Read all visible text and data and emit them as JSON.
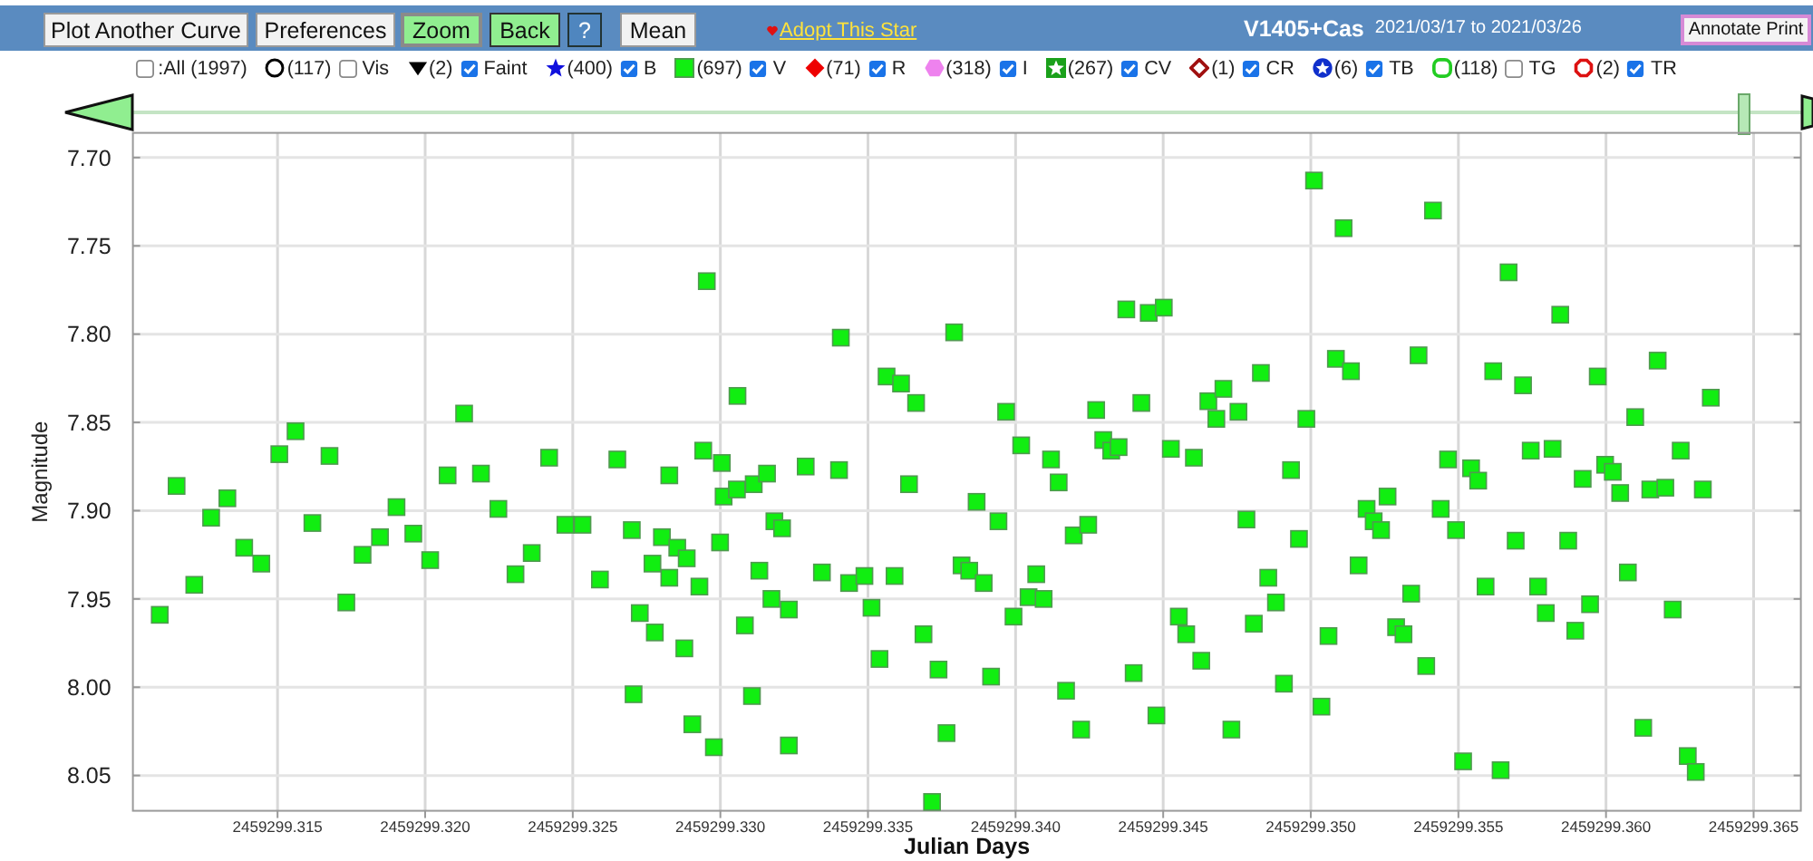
{
  "chart_data": {
    "type": "scatter",
    "title": "V1405+Cas",
    "subtitle": "2021/03/17 to 2021/03/26",
    "xlabel": "Julian Days",
    "ylabel": "Magnitude",
    "annotations": [
      "Plot Another Curve",
      "Preferences",
      "Zoom",
      "Back",
      "?",
      "Mean",
      "Adopt This Star",
      "Annotate Print",
      ":All (1997)",
      "(117)",
      "Vis",
      "(2)",
      "Faint",
      "(400)",
      "B",
      "(697)",
      "(71)",
      "R",
      "(318)",
      "I",
      "(267)",
      "CV",
      "(1)",
      "CR",
      "(6)",
      "TB",
      "(118)",
      "TG",
      "(2)",
      "TR"
    ],
    "series": [
      {
        "name": "V",
        "color": "#11ee11",
        "x": [
          2459299.31101,
          2459299.31158,
          2459299.31218,
          2459299.31275,
          2459299.3133,
          2459299.31387,
          2459299.31445,
          2459299.31506,
          2459299.31561,
          2459299.31618,
          2459299.31676,
          2459299.31733,
          2459299.31788,
          2459299.31847,
          2459299.31903,
          2459299.3196,
          2459299.32017,
          2459299.32076,
          2459299.32132,
          2459299.32189,
          2459299.32248,
          2459299.32306,
          2459299.32361,
          2459299.3242,
          2459299.32475,
          2459299.32533,
          2459299.32592,
          2459299.32651,
          2459299.327,
          2459299.32727,
          2459299.32706,
          2459299.3277,
          2459299.32778,
          2459299.32802,
          2459299.32827,
          2459299.32827,
          2459299.32854,
          2459299.32878,
          2459299.32886,
          2459299.32905,
          2459299.32929,
          2459299.32942,
          2459299.32954,
          2459299.32978,
          2459299.32999,
          2459299.33005,
          2459299.33011,
          2459299.33058,
          2459299.33056,
          2459299.33083,
          2459299.33107,
          2459299.33113,
          2459299.33132,
          2459299.33158,
          2459299.33173,
          2459299.33183,
          2459299.33209,
          2459299.33232,
          2459299.33232,
          2459299.33289,
          2459299.33344,
          2459299.33402,
          2459299.33408,
          2459299.33436,
          2459299.33488,
          2459299.33512,
          2459299.33539,
          2459299.33563,
          2459299.3359,
          2459299.33612,
          2459299.33639,
          2459299.33663,
          2459299.33688,
          2459299.33717,
          2459299.33739,
          2459299.33766,
          2459299.33792,
          2459299.33817,
          2459299.33843,
          2459299.33868,
          2459299.33892,
          2459299.33917,
          2459299.33942,
          2459299.33968,
          2459299.33993,
          2459299.34019,
          2459299.34044,
          2459299.3407,
          2459299.34095,
          2459299.3412,
          2459299.34146,
          2459299.34171,
          2459299.34197,
          2459299.34222,
          2459299.34246,
          2459299.34273,
          2459299.34297,
          2459299.34324,
          2459299.34349,
          2459299.34375,
          2459299.344,
          2459299.34426,
          2459299.34451,
          2459299.34477,
          2459299.34502,
          2459299.34526,
          2459299.34553,
          2459299.34578,
          2459299.34604,
          2459299.34629,
          2459299.34653,
          2459299.3468,
          2459299.34704,
          2459299.34731,
          2459299.34755,
          2459299.34782,
          2459299.34807,
          2459299.34831,
          2459299.34856,
          2459299.34882,
          2459299.34909,
          2459299.34933,
          2459299.3496,
          2459299.34985,
          2459299.35011,
          2459299.35036,
          2459299.3506,
          2459299.35085,
          2459299.35111,
          2459299.35136,
          2459299.35162,
          2459299.35189,
          2459299.35213,
          2459299.35238,
          2459299.3526,
          2459299.35289,
          2459299.35314,
          2459299.3534,
          2459299.35365,
          2459299.35391,
          2459299.35414,
          2459299.3544,
          2459299.35465,
          2459299.35492,
          2459299.35516,
          2459299.35543,
          2459299.35567,
          2459299.35592,
          2459299.35618,
          2459299.35643,
          2459299.3567,
          2459299.35694,
          2459299.35719,
          2459299.35745,
          2459299.3577,
          2459299.35796,
          2459299.35819,
          2459299.35845,
          2459299.35872,
          2459299.35896,
          2459299.35921,
          2459299.35946,
          2459299.35972,
          2459299.35997,
          2459299.36023,
          2459299.36048,
          2459299.36074,
          2459299.36099,
          2459299.36126,
          2459299.3615,
          2459299.36175,
          2459299.36201,
          2459299.36226,
          2459299.36253,
          2459299.36277,
          2459299.36304,
          2459299.36328,
          2459299.36355
        ],
        "values": [
          7.959,
          7.886,
          7.942,
          7.904,
          7.893,
          7.921,
          7.93,
          7.868,
          7.855,
          7.907,
          7.869,
          7.952,
          7.925,
          7.915,
          7.898,
          7.913,
          7.928,
          7.88,
          7.845,
          7.879,
          7.899,
          7.936,
          7.924,
          7.87,
          7.908,
          7.908,
          7.939,
          7.871,
          7.911,
          7.958,
          8.004,
          7.93,
          7.969,
          7.915,
          7.88,
          7.938,
          7.921,
          7.978,
          7.927,
          8.021,
          7.943,
          7.866,
          7.77,
          8.034,
          7.918,
          7.873,
          7.892,
          7.835,
          7.888,
          7.965,
          8.005,
          7.885,
          7.934,
          7.879,
          7.95,
          7.906,
          7.91,
          7.956,
          8.033,
          7.875,
          7.935,
          7.877,
          7.802,
          7.941,
          7.937,
          7.955,
          7.984,
          7.824,
          7.937,
          7.828,
          7.885,
          7.839,
          7.97,
          8.065,
          7.99,
          8.026,
          7.799,
          7.931,
          7.934,
          7.895,
          7.941,
          7.994,
          7.906,
          7.844,
          7.96,
          7.863,
          7.949,
          7.936,
          7.95,
          7.871,
          7.884,
          8.002,
          7.914,
          8.024,
          7.908,
          7.843,
          7.86,
          7.866,
          7.864,
          7.786,
          7.992,
          7.839,
          7.788,
          8.016,
          7.785,
          7.865,
          7.96,
          7.97,
          7.87,
          7.985,
          7.838,
          7.848,
          7.831,
          8.024,
          7.844,
          7.905,
          7.964,
          7.822,
          7.938,
          7.952,
          7.998,
          7.877,
          7.916,
          7.848,
          7.713,
          8.011,
          7.971,
          7.814,
          7.74,
          7.821,
          7.931,
          7.899,
          7.906,
          7.911,
          7.892,
          7.966,
          7.97,
          7.947,
          7.812,
          7.988,
          7.73,
          7.899,
          7.871,
          7.911,
          8.042,
          7.876,
          7.883,
          7.943,
          7.821,
          8.047,
          7.765,
          7.917,
          7.829,
          7.866,
          7.943,
          7.958,
          7.865,
          7.789,
          7.917,
          7.968,
          7.882,
          7.953,
          7.824,
          7.874,
          7.878,
          7.89,
          7.935,
          7.847,
          8.023,
          7.888,
          7.815,
          7.887,
          7.956,
          7.866,
          8.039,
          8.048,
          7.888,
          7.836
        ]
      }
    ],
    "xlim": [
      2459299.3101,
      2459299.3666
    ],
    "xticks": [
      2459299.315,
      {
        "value": 2459299.32,
        "label": "2459299.320"
      },
      2459299.325,
      {
        "value": 2459299.33,
        "label": "2459299.330"
      },
      2459299.335,
      {
        "value": 2459299.34,
        "label": "2459299.340"
      },
      2459299.345,
      {
        "value": 2459299.35,
        "label": "2459299.350"
      },
      2459299.355,
      {
        "value": 2459299.36,
        "label": "2459299.360"
      },
      2459299.365
    ],
    "ylim": [
      8.07,
      7.686
    ],
    "yticks": [
      {
        "value": 7.7,
        "label": "7.70"
      },
      7.75,
      {
        "value": 7.8,
        "label": "7.80"
      },
      7.85,
      {
        "value": 7.9,
        "label": "7.90"
      },
      7.95,
      {
        "value": 8,
        "label": "8.00"
      },
      8.05
    ],
    "grid": true,
    "legend": "top",
    "marker": "square"
  }
}
